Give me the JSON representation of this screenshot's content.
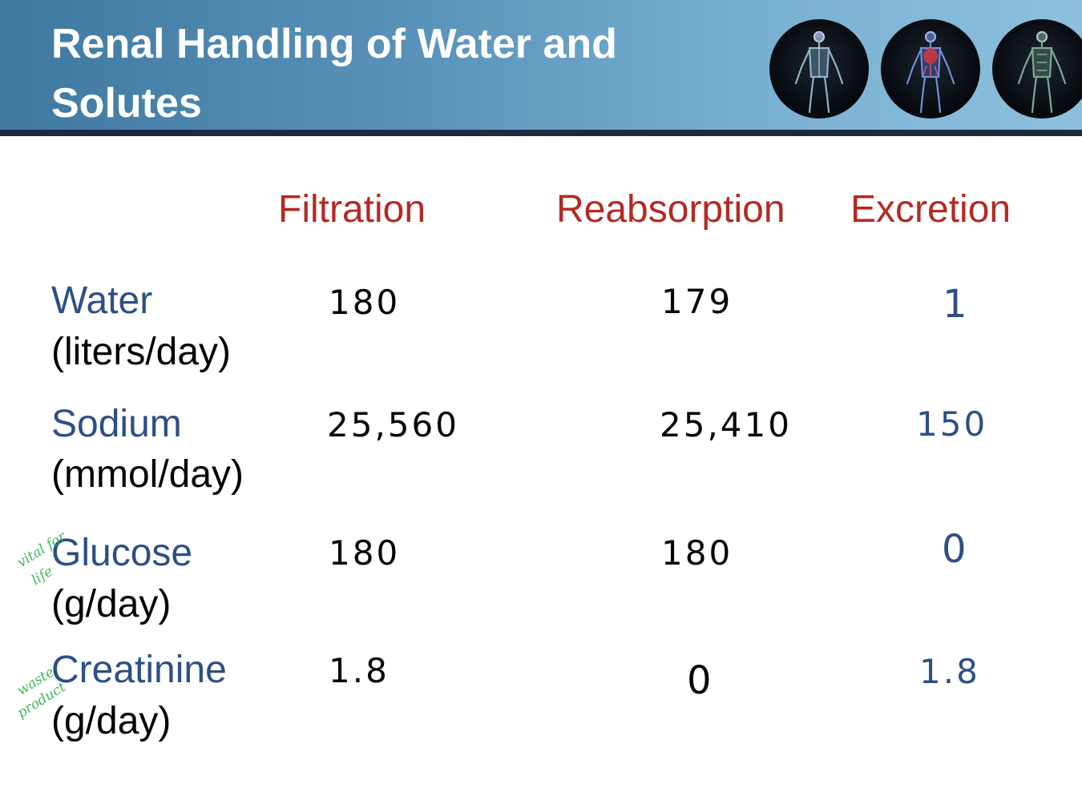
{
  "header": {
    "title_line1": "Renal Handling of Water and",
    "title_line2": "Solutes",
    "images": [
      "nervous-system-figure-icon",
      "circulatory-system-figure-icon",
      "lymphatic-system-figure-icon"
    ]
  },
  "table": {
    "columns": [
      "Filtration",
      "Reabsorption",
      "Excretion"
    ],
    "rows": [
      {
        "name": "Water",
        "unit": "(liters/day)",
        "filtration": "180",
        "reabsorption": "179",
        "excretion": "1"
      },
      {
        "name": "Sodium",
        "unit": "(mmol/day)",
        "filtration": "25,560",
        "reabsorption": "25,410",
        "excretion": "150"
      },
      {
        "name": "Glucose",
        "unit": "(g/day)",
        "filtration": "180",
        "reabsorption": "180",
        "excretion": "0"
      },
      {
        "name": "Creatinine",
        "unit": "(g/day)",
        "filtration": "1.8",
        "reabsorption": "0",
        "excretion": "1.8"
      }
    ]
  },
  "annotations": {
    "glucose_note_line1": "vital for",
    "glucose_note_line2": "life",
    "creatinine_note_line1": "waste",
    "creatinine_note_line2": "product"
  },
  "colors": {
    "title_text": "#ffffff",
    "header_blue": "#5690b7",
    "column_header_red": "#b32a22",
    "row_label_blue": "#2d4f86",
    "handwriting_green": "#3fb85a"
  }
}
